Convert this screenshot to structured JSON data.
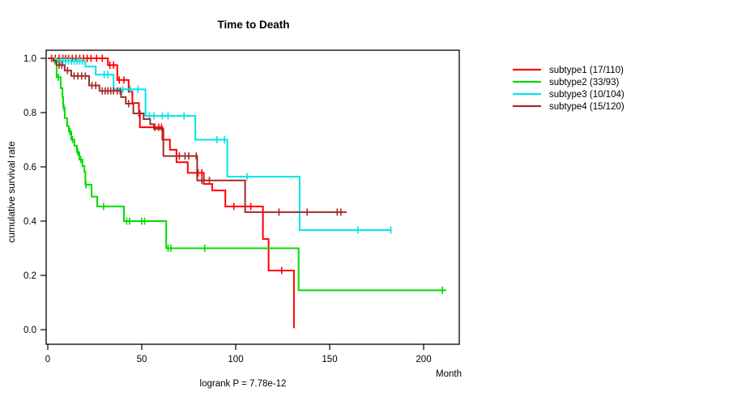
{
  "title": "Time to Death",
  "footer": "logrank P = 7.78e-12",
  "axes": {
    "x": {
      "label": "Month",
      "tick_labels": [
        "0",
        "50",
        "100",
        "150",
        "200"
      ],
      "tick_values": [
        0,
        50,
        100,
        150,
        200
      ]
    },
    "y": {
      "label": "cumulative survival rate",
      "tick_labels": [
        "0.0",
        "0.2",
        "0.4",
        "0.6",
        "0.8",
        "1.0"
      ],
      "tick_values": [
        0,
        0.2,
        0.4,
        0.6,
        0.8,
        1
      ]
    }
  },
  "chart_data": {
    "type": "line",
    "variant": "kaplan_meier_step_survival",
    "title": "Time to Death",
    "xlabel": "Month",
    "ylabel": "cumulative survival rate",
    "xlim": [
      0,
      220
    ],
    "ylim": [
      0,
      1
    ],
    "grid": false,
    "legend_position": "right-outside",
    "annotation": "logrank P = 7.78e-12",
    "series": [
      {
        "name": "subtype1 (17/110)",
        "color": "#ff0000",
        "events_over_n": "17/110",
        "drops": [
          [
            32,
            0.975
          ],
          [
            37,
            0.92
          ],
          [
            43,
            0.877
          ],
          [
            45,
            0.835
          ],
          [
            48.5,
            0.806
          ],
          [
            49,
            0.746
          ],
          [
            61,
            0.7
          ],
          [
            65,
            0.663
          ],
          [
            68.5,
            0.617
          ],
          [
            74.5,
            0.578
          ],
          [
            83,
            0.537
          ],
          [
            87.5,
            0.513
          ],
          [
            94.5,
            0.454
          ],
          [
            114.5,
            0.334
          ],
          [
            117.5,
            0.218
          ],
          [
            131,
            0.005
          ]
        ],
        "end": 131,
        "censor_times": [
          2,
          4,
          6,
          8,
          9.5,
          11,
          13,
          15,
          17,
          19,
          21,
          23,
          26,
          29,
          33,
          35,
          38,
          40.5,
          57,
          59,
          60.5,
          80,
          82,
          99,
          108,
          124.5
        ]
      },
      {
        "name": "subtype2 (33/93)",
        "color": "#00dc00",
        "events_over_n": "33/93",
        "drops": [
          [
            3.9,
            0.98
          ],
          [
            4.7,
            0.93
          ],
          [
            6.9,
            0.89
          ],
          [
            7.8,
            0.857
          ],
          [
            8.2,
            0.818
          ],
          [
            9,
            0.78
          ],
          [
            10.3,
            0.75
          ],
          [
            11.2,
            0.73
          ],
          [
            12.5,
            0.7
          ],
          [
            14.2,
            0.678
          ],
          [
            15.5,
            0.654
          ],
          [
            16.8,
            0.627
          ],
          [
            18.5,
            0.603
          ],
          [
            19.5,
            0.582
          ],
          [
            20,
            0.534
          ],
          [
            23.3,
            0.49
          ],
          [
            26.3,
            0.454
          ],
          [
            40.5,
            0.4
          ],
          [
            63,
            0.3
          ],
          [
            133.5,
            0.145
          ]
        ],
        "end": 212,
        "censor_times": [
          5.6,
          8.6,
          11.8,
          13.2,
          16,
          17.6,
          20.3,
          29.7,
          42,
          43.5,
          50,
          51.5,
          64,
          65.5,
          83.5,
          210
        ]
      },
      {
        "name": "subtype3 (10/104)",
        "color": "#00e6e6",
        "events_over_n": "10/104",
        "drops": [
          [
            4.7,
            0.99
          ],
          [
            20,
            0.97
          ],
          [
            25.5,
            0.94
          ],
          [
            35,
            0.886
          ],
          [
            52,
            0.788
          ],
          [
            78.5,
            0.7
          ],
          [
            95.5,
            0.564
          ],
          [
            134,
            0.367
          ]
        ],
        "end": 183,
        "censor_times": [
          6.5,
          8,
          9.5,
          11,
          12.5,
          14,
          15.5,
          17,
          18.5,
          30,
          32,
          40,
          44,
          48,
          54,
          56.5,
          61,
          64,
          72.5,
          90,
          94,
          106,
          165,
          182.5
        ]
      },
      {
        "name": "subtype4 (15/120)",
        "color": "#a52a2a",
        "events_over_n": "15/120",
        "drops": [
          [
            3,
            0.99
          ],
          [
            4.7,
            0.975
          ],
          [
            9,
            0.955
          ],
          [
            12.5,
            0.935
          ],
          [
            22,
            0.9
          ],
          [
            27.5,
            0.88
          ],
          [
            39,
            0.857
          ],
          [
            41.5,
            0.833
          ],
          [
            45.5,
            0.797
          ],
          [
            51,
            0.776
          ],
          [
            54.5,
            0.757
          ],
          [
            56.5,
            0.74
          ],
          [
            61.5,
            0.64
          ],
          [
            79.5,
            0.55
          ],
          [
            105,
            0.433
          ]
        ],
        "end": 159,
        "censor_times": [
          6,
          7.5,
          10.5,
          14,
          16,
          18,
          20,
          23.5,
          25.5,
          29,
          30.5,
          32,
          33.5,
          35,
          37,
          38.5,
          43,
          48.5,
          70,
          73,
          75,
          79,
          82,
          86,
          123,
          138,
          154,
          156
        ]
      }
    ]
  }
}
